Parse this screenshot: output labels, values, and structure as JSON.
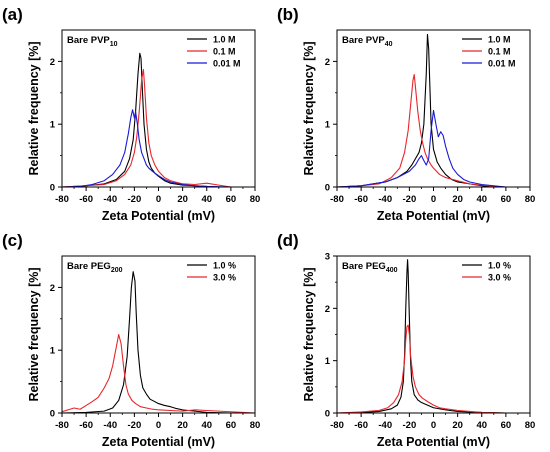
{
  "chart_data": [
    {
      "type": "line",
      "panel_label": "(a)",
      "title": "Bare PVP",
      "title_sub": "10",
      "xlabel": "Zeta Potential (mV)",
      "ylabel": "Relative frequency [%]",
      "xlim": [
        -80,
        80
      ],
      "ylim": [
        0,
        2.5
      ],
      "xticks": [
        -80,
        -60,
        -40,
        -20,
        0,
        20,
        40,
        60,
        80
      ],
      "yticks": [
        0,
        1,
        2
      ],
      "legend": "top-right",
      "series": [
        {
          "name": "1.0 M",
          "color": "#000000",
          "x": [
            -80,
            -60,
            -45,
            -35,
            -28,
            -24,
            -21,
            -19,
            -17,
            -15.5,
            -14.5,
            -13.5,
            -12,
            -10,
            -8,
            -6,
            -3,
            0,
            5,
            10,
            20,
            30,
            40,
            50,
            60,
            80
          ],
          "y": [
            0,
            0.02,
            0.05,
            0.12,
            0.25,
            0.45,
            0.75,
            1.2,
            1.8,
            2.13,
            2.05,
            1.6,
            1.0,
            0.6,
            0.4,
            0.3,
            0.22,
            0.17,
            0.1,
            0.06,
            0.03,
            0.02,
            0.01,
            0,
            0,
            0
          ]
        },
        {
          "name": "0.1 M",
          "color": "#e8262b",
          "x": [
            -80,
            -60,
            -45,
            -35,
            -28,
            -23,
            -20,
            -18,
            -16,
            -14,
            -12.5,
            -11.5,
            -10,
            -8,
            -6,
            -3,
            0,
            5,
            10,
            20,
            30,
            40,
            50,
            60,
            80
          ],
          "y": [
            0,
            0.02,
            0.04,
            0.1,
            0.2,
            0.35,
            0.55,
            0.8,
            1.2,
            1.7,
            1.87,
            1.6,
            1.1,
            0.7,
            0.5,
            0.35,
            0.25,
            0.15,
            0.1,
            0.05,
            0.04,
            0.06,
            0.03,
            0,
            0
          ]
        },
        {
          "name": "0.01 M",
          "color": "#1a1ad6",
          "x": [
            -80,
            -65,
            -55,
            -45,
            -38,
            -32,
            -28,
            -25,
            -23,
            -21.5,
            -20,
            -19,
            -17.5,
            -16,
            -14,
            -12,
            -10,
            -8,
            -5,
            0,
            5,
            10,
            15,
            20,
            30,
            40,
            60,
            80
          ],
          "y": [
            0,
            0.01,
            0.04,
            0.1,
            0.2,
            0.35,
            0.55,
            0.85,
            1.1,
            1.23,
            1.1,
            1.2,
            1.0,
            0.75,
            0.55,
            0.45,
            0.35,
            0.3,
            0.25,
            0.18,
            0.12,
            0.08,
            0.06,
            0.04,
            0.02,
            0.01,
            0,
            0
          ]
        }
      ]
    },
    {
      "type": "line",
      "panel_label": "(b)",
      "title": "Bare PVP",
      "title_sub": "40",
      "xlabel": "Zeta Potential (mV)",
      "ylabel": "Relative frequency [%]",
      "xlim": [
        -80,
        80
      ],
      "ylim": [
        0,
        2.5
      ],
      "xticks": [
        -80,
        -60,
        -40,
        -20,
        0,
        20,
        40,
        60,
        80
      ],
      "yticks": [
        0,
        1,
        2
      ],
      "legend": "top-right",
      "series": [
        {
          "name": "1.0 M",
          "color": "#000000",
          "x": [
            -80,
            -60,
            -40,
            -30,
            -22,
            -18,
            -15,
            -12,
            -10,
            -8,
            -6,
            -5,
            -4,
            -3,
            -2,
            0,
            3,
            6,
            10,
            15,
            20,
            30,
            40,
            50,
            60,
            80
          ],
          "y": [
            0,
            0.02,
            0.08,
            0.15,
            0.25,
            0.35,
            0.45,
            0.55,
            0.7,
            1.0,
            1.8,
            2.43,
            2.2,
            1.6,
            1.0,
            0.6,
            0.4,
            0.3,
            0.2,
            0.12,
            0.08,
            0.05,
            0.02,
            0,
            0,
            0
          ]
        },
        {
          "name": "0.1 M",
          "color": "#e8262b",
          "x": [
            -80,
            -60,
            -45,
            -35,
            -28,
            -24,
            -21,
            -19,
            -17,
            -16,
            -15,
            -13,
            -11,
            -9,
            -7,
            -5,
            -2,
            0,
            5,
            10,
            20,
            30,
            40,
            50,
            60,
            80
          ],
          "y": [
            0,
            0.02,
            0.05,
            0.15,
            0.3,
            0.55,
            0.9,
            1.3,
            1.7,
            1.79,
            1.6,
            1.2,
            0.9,
            0.7,
            0.55,
            0.45,
            0.35,
            0.3,
            0.2,
            0.15,
            0.1,
            0.05,
            0.03,
            0.01,
            0,
            0
          ]
        },
        {
          "name": "0.01 M",
          "color": "#1a1ad6",
          "x": [
            -80,
            -60,
            -40,
            -30,
            -20,
            -15,
            -12,
            -10,
            -8,
            -6,
            -4,
            -2,
            0,
            2,
            4,
            6,
            8,
            10,
            13,
            16,
            20,
            25,
            30,
            40,
            50,
            60,
            80
          ],
          "y": [
            0,
            0.02,
            0.08,
            0.15,
            0.25,
            0.35,
            0.45,
            0.5,
            0.42,
            0.35,
            0.45,
            0.9,
            1.22,
            1.0,
            0.8,
            0.88,
            0.82,
            0.65,
            0.45,
            0.3,
            0.2,
            0.12,
            0.08,
            0.04,
            0.02,
            0,
            0
          ]
        }
      ]
    },
    {
      "type": "line",
      "panel_label": "(c)",
      "title": "Bare PEG",
      "title_sub": "200",
      "xlabel": "Zeta Potential (mV)",
      "ylabel": "Relative frequency [%]",
      "xlim": [
        -80,
        80
      ],
      "ylim": [
        0,
        2.5
      ],
      "xticks": [
        -80,
        -60,
        -40,
        -20,
        0,
        20,
        40,
        60,
        80
      ],
      "yticks": [
        0,
        1,
        2
      ],
      "legend": "top-right",
      "series": [
        {
          "name": "1.0 %",
          "color": "#000000",
          "x": [
            -80,
            -60,
            -45,
            -38,
            -33,
            -29,
            -26,
            -24,
            -22.5,
            -21,
            -19.5,
            -18.5,
            -17,
            -15,
            -13,
            -10,
            -7,
            -3,
            0,
            5,
            10,
            15,
            20,
            30,
            40,
            60,
            80
          ],
          "y": [
            0,
            0.01,
            0.03,
            0.08,
            0.2,
            0.45,
            0.9,
            1.5,
            2.0,
            2.25,
            2.1,
            1.6,
            1.0,
            0.6,
            0.4,
            0.3,
            0.22,
            0.18,
            0.15,
            0.12,
            0.1,
            0.07,
            0.05,
            0.03,
            0.01,
            0,
            0
          ]
        },
        {
          "name": "3.0 %",
          "color": "#e8262b",
          "x": [
            -80,
            -75,
            -70,
            -65,
            -60,
            -55,
            -50,
            -45,
            -41,
            -38,
            -35,
            -33,
            -31,
            -29,
            -27,
            -25,
            -22,
            -19,
            -15,
            -10,
            -5,
            0,
            10,
            20,
            30,
            40,
            50,
            60,
            70,
            80
          ],
          "y": [
            0.02,
            0.05,
            0.08,
            0.06,
            0.12,
            0.18,
            0.25,
            0.4,
            0.55,
            0.75,
            1.05,
            1.25,
            1.1,
            0.75,
            0.45,
            0.3,
            0.2,
            0.15,
            0.1,
            0.08,
            0.06,
            0.05,
            0.04,
            0.03,
            0.05,
            0.04,
            0.03,
            0.02,
            0.01,
            0
          ]
        }
      ]
    },
    {
      "type": "line",
      "panel_label": "(d)",
      "title": "Bare PEG",
      "title_sub": "400",
      "xlabel": "Zeta Potential (mV)",
      "ylabel": "Relative frequency [%]",
      "xlim": [
        -80,
        80
      ],
      "ylim": [
        0,
        3.0
      ],
      "xticks": [
        -80,
        -60,
        -40,
        -20,
        0,
        20,
        40,
        60,
        80
      ],
      "yticks": [
        0,
        1,
        2,
        3
      ],
      "legend": "top-right",
      "series": [
        {
          "name": "1.0 %",
          "color": "#000000",
          "x": [
            -80,
            -60,
            -45,
            -35,
            -30,
            -27,
            -25,
            -24,
            -23,
            -22,
            -21.5,
            -21,
            -20,
            -19,
            -18,
            -16,
            -13,
            -10,
            -5,
            0,
            10,
            20,
            30,
            40,
            60,
            80
          ],
          "y": [
            0,
            0.01,
            0.03,
            0.08,
            0.15,
            0.3,
            0.6,
            1.1,
            2.0,
            2.7,
            2.93,
            2.7,
            1.8,
            1.0,
            0.6,
            0.35,
            0.25,
            0.2,
            0.15,
            0.1,
            0.06,
            0.03,
            0.02,
            0.01,
            0,
            0
          ]
        },
        {
          "name": "3.0 %",
          "color": "#e8262b",
          "x": [
            -80,
            -60,
            -45,
            -38,
            -33,
            -29,
            -26,
            -24,
            -23,
            -22,
            -21,
            -20,
            -19,
            -17,
            -15,
            -12,
            -9,
            -5,
            0,
            5,
            10,
            20,
            30,
            40,
            60,
            80
          ],
          "y": [
            0,
            0.02,
            0.05,
            0.1,
            0.2,
            0.35,
            0.6,
            1.0,
            1.4,
            1.65,
            1.68,
            1.5,
            1.1,
            0.7,
            0.5,
            0.35,
            0.28,
            0.22,
            0.15,
            0.1,
            0.08,
            0.05,
            0.03,
            0.01,
            0,
            0
          ]
        }
      ]
    }
  ]
}
